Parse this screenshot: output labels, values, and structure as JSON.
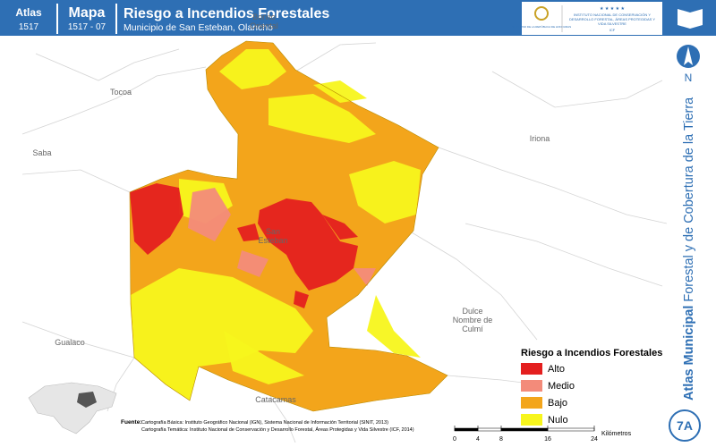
{
  "header": {
    "atlas_label": "Atlas",
    "atlas_number": "1517",
    "map_label": "Mapa",
    "map_number": "1517 - 07",
    "title": "Riesgo a Incendios Forestales",
    "subtitle": "Municipio de San Esteban, Olancho"
  },
  "logos": {
    "government": "GOBIERNO DE LA REPÚBLICA DE HONDURAS",
    "institute": "INSTITUTO NACIONAL DE CONSERVACIÓN Y DESARROLLO FORESTAL, ÁREAS PROTEGIDAS Y VIDA SILVESTRE",
    "acronym": "ICF"
  },
  "sidebar": {
    "north": "N",
    "atlas_bold": "Atlas Municipal",
    "atlas_rest": "Forestal y de Cobertura de la Tierra",
    "badge": "7A"
  },
  "places": [
    {
      "lines": [
        "Bonito",
        "Oriental"
      ]
    },
    {
      "lines": [
        "Tocoa"
      ]
    },
    {
      "lines": [
        "Saba"
      ]
    },
    {
      "lines": [
        "Iriona"
      ]
    },
    {
      "lines": [
        "San",
        "Esteban"
      ]
    },
    {
      "lines": [
        "Dulce",
        "Nombre de",
        "Culmí"
      ]
    },
    {
      "lines": [
        "Gualaco"
      ]
    },
    {
      "lines": [
        "Catacamas"
      ]
    }
  ],
  "legend": {
    "title": "Riesgo a Incendios Forestales",
    "items": [
      {
        "label": "Alto",
        "color": "#e41f1f"
      },
      {
        "label": "Medio",
        "color": "#f38b7a"
      },
      {
        "label": "Bajo",
        "color": "#f3a51b"
      },
      {
        "label": "Nulo",
        "color": "#f7f51c"
      }
    ]
  },
  "source": {
    "label": "Fuente:",
    "lines": [
      "Cartografía Básica: Instituto Geográfico Nacional (IGN), Sistema Nacional de Información Territorial (SINIT, 2013)",
      "Cartografía Temática: Instituto Nacional de Conservación y Desarrollo Forestal, Áreas Protegidas y Vida Silvestre (ICF, 2014)"
    ]
  },
  "scale": {
    "ticks": [
      0,
      4,
      8,
      16,
      24
    ],
    "unit": "Kilómetros"
  }
}
